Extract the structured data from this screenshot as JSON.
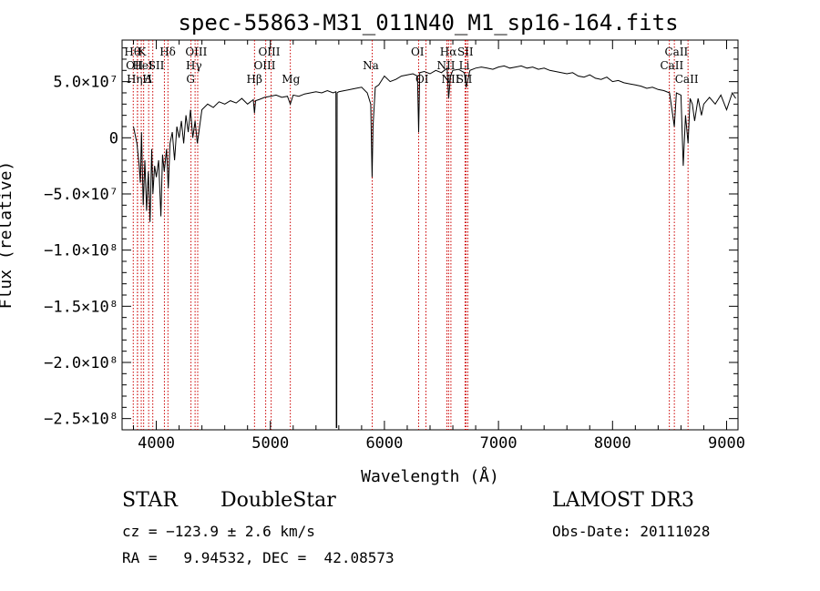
{
  "chart_data": {
    "type": "line",
    "title": "spec-55863-M31_011N40_M1_sp16-164.fits",
    "xlabel": "Wavelength (Å)",
    "ylabel": "Flux (relative)",
    "xlim": [
      3700,
      9100
    ],
    "ylim": [
      -260000000,
      87000000
    ],
    "x_ticks": [
      {
        "value": 4000,
        "label": "4000"
      },
      {
        "value": 5000,
        "label": "5000"
      },
      {
        "value": 6000,
        "label": "6000"
      },
      {
        "value": 7000,
        "label": "7000"
      },
      {
        "value": 8000,
        "label": "8000"
      },
      {
        "value": 9000,
        "label": "9000"
      }
    ],
    "y_ticks": [
      {
        "value": 50000000,
        "label": "5.0×10⁷"
      },
      {
        "value": 0,
        "label": "0"
      },
      {
        "value": -50000000,
        "label": "−5.0×10⁷"
      },
      {
        "value": -100000000,
        "label": "−1.0×10⁸"
      },
      {
        "value": -150000000,
        "label": "−1.5×10⁸"
      },
      {
        "value": -200000000,
        "label": "−2.0×10⁸"
      },
      {
        "value": -250000000,
        "label": "−2.5×10⁸"
      }
    ],
    "series": [
      {
        "name": "spectrum",
        "x": [
          3800,
          3830,
          3850,
          3860,
          3870,
          3885,
          3900,
          3915,
          3930,
          3945,
          3960,
          3970,
          3985,
          4000,
          4020,
          4040,
          4055,
          4070,
          4090,
          4105,
          4120,
          4140,
          4160,
          4180,
          4200,
          4220,
          4240,
          4260,
          4280,
          4300,
          4320,
          4340,
          4360,
          4400,
          4450,
          4500,
          4550,
          4600,
          4650,
          4700,
          4750,
          4800,
          4850,
          4861,
          4870,
          4900,
          4950,
          5000,
          5050,
          5100,
          5150,
          5175,
          5200,
          5250,
          5300,
          5350,
          5400,
          5450,
          5500,
          5550,
          5575,
          5578,
          5580,
          5582,
          5585,
          5600,
          5650,
          5700,
          5750,
          5800,
          5850,
          5880,
          5892,
          5900,
          5920,
          5950,
          6000,
          6050,
          6100,
          6150,
          6200,
          6250,
          6290,
          6300,
          6310,
          6350,
          6400,
          6450,
          6500,
          6550,
          6563,
          6580,
          6600,
          6650,
          6700,
          6717,
          6750,
          6800,
          6850,
          6900,
          6950,
          7000,
          7050,
          7100,
          7150,
          7200,
          7250,
          7300,
          7350,
          7400,
          7450,
          7500,
          7550,
          7600,
          7650,
          7700,
          7750,
          7800,
          7850,
          7900,
          7950,
          8000,
          8050,
          8100,
          8150,
          8200,
          8250,
          8300,
          8350,
          8400,
          8450,
          8500,
          8542,
          8560,
          8600,
          8620,
          8640,
          8662,
          8680,
          8700,
          8720,
          8750,
          8780,
          8800,
          8850,
          8900,
          8950,
          9000,
          9050,
          9080
        ],
        "y": [
          10000000,
          -5000000,
          -25000000,
          -40000000,
          5000000,
          -60000000,
          -20000000,
          -65000000,
          -30000000,
          -75000000,
          -10000000,
          -50000000,
          -25000000,
          -35000000,
          -20000000,
          -70000000,
          -15000000,
          -30000000,
          -10000000,
          -45000000,
          -5000000,
          5000000,
          -20000000,
          10000000,
          0,
          15000000,
          -5000000,
          20000000,
          5000000,
          25000000,
          0,
          15000000,
          -5000000,
          25000000,
          30000000,
          27000000,
          32000000,
          30000000,
          33000000,
          31000000,
          35000000,
          30000000,
          34000000,
          22000000,
          33000000,
          34000000,
          36000000,
          37000000,
          38000000,
          36000000,
          37000000,
          30000000,
          38000000,
          37000000,
          39000000,
          40000000,
          41000000,
          40000000,
          42000000,
          40000000,
          41000000,
          -258000000,
          -258000000,
          -258000000,
          40000000,
          41000000,
          42000000,
          43000000,
          44000000,
          45000000,
          40000000,
          30000000,
          -35000000,
          10000000,
          45000000,
          47000000,
          55000000,
          50000000,
          52000000,
          55000000,
          56000000,
          57000000,
          55000000,
          5000000,
          58000000,
          59000000,
          57000000,
          60000000,
          58000000,
          62000000,
          35000000,
          55000000,
          60000000,
          61000000,
          58000000,
          45000000,
          60000000,
          62000000,
          63000000,
          62000000,
          61000000,
          63000000,
          64000000,
          62000000,
          63000000,
          64000000,
          62000000,
          63000000,
          61000000,
          62000000,
          60000000,
          59000000,
          58000000,
          57000000,
          58000000,
          55000000,
          54000000,
          56000000,
          53000000,
          52000000,
          54000000,
          50000000,
          51000000,
          49000000,
          48000000,
          47000000,
          46000000,
          44000000,
          45000000,
          43000000,
          42000000,
          40000000,
          10000000,
          40000000,
          38000000,
          -25000000,
          20000000,
          -5000000,
          35000000,
          30000000,
          15000000,
          35000000,
          20000000,
          30000000,
          36000000,
          30000000,
          38000000,
          25000000,
          40000000,
          35000000
        ]
      }
    ],
    "lines": [
      {
        "wl": 3798,
        "label": "Hθ",
        "row": 0,
        "labelWl": 3790
      },
      {
        "wl": 3835,
        "label": "OII",
        "row": 1,
        "labelWl": 3810
      },
      {
        "wl": 3835,
        "label": "Hη",
        "row": 2,
        "labelWl": 3810
      },
      {
        "wl": 3868,
        "label": "K",
        "row": 0,
        "labelWl": 3875
      },
      {
        "wl": 3889,
        "label": "HeI",
        "row": 1,
        "labelWl": 3880
      },
      {
        "wl": 3933,
        "label": "H",
        "row": 2,
        "labelWl": 3920
      },
      {
        "wl": 3969,
        "label": "Δ",
        "row": 2,
        "labelWl": 3930
      },
      {
        "wl": 4071,
        "label": "SII",
        "row": 1,
        "labelWl": 4000
      },
      {
        "wl": 4102,
        "label": "Hδ",
        "row": 0,
        "labelWl": 4100
      },
      {
        "wl": 4304,
        "label": "G",
        "row": 2,
        "labelWl": 4300
      },
      {
        "wl": 4340,
        "label": "Hγ",
        "row": 1,
        "labelWl": 4330
      },
      {
        "wl": 4363,
        "label": "OIII",
        "row": 0,
        "labelWl": 4350
      },
      {
        "wl": 4861,
        "label": "Hβ",
        "row": 2,
        "labelWl": 4860
      },
      {
        "wl": 4959,
        "label": "OIII",
        "row": 1,
        "labelWl": 4950
      },
      {
        "wl": 5007,
        "label": "OIII",
        "row": 0,
        "labelWl": 4990
      },
      {
        "wl": 5175,
        "label": "Mg",
        "row": 2,
        "labelWl": 5180
      },
      {
        "wl": 5893,
        "label": "Na",
        "row": 1,
        "labelWl": 5880
      },
      {
        "wl": 6300,
        "label": "OI",
        "row": 0,
        "labelWl": 6290
      },
      {
        "wl": 6364,
        "label": "OI",
        "row": 2,
        "labelWl": 6330
      },
      {
        "wl": 6548,
        "label": "NII",
        "row": 1,
        "labelWl": 6540
      },
      {
        "wl": 6563,
        "label": "Hα",
        "row": 0,
        "labelWl": 6560
      },
      {
        "wl": 6583,
        "label": "NII",
        "row": 2,
        "labelWl": 6580
      },
      {
        "wl": 6707,
        "label": "Li",
        "row": 1,
        "labelWl": 6700
      },
      {
        "wl": 6716,
        "label": "SII",
        "row": 0,
        "labelWl": 6710
      },
      {
        "wl": 6731,
        "label": "SII",
        "row": 2,
        "labelWl": 6700
      },
      {
        "wl": 8498,
        "label": "CaII",
        "row": 1,
        "labelWl": 8520
      },
      {
        "wl": 8542,
        "label": "CaII",
        "row": 0,
        "labelWl": 8560
      },
      {
        "wl": 8662,
        "label": "CaII",
        "row": 2,
        "labelWl": 8650
      }
    ]
  },
  "info": {
    "class": "STAR",
    "subclass": "DoubleStar",
    "survey": "LAMOST DR3",
    "cz": "cz = −123.9 ± 2.6 km/s",
    "obs_date": "Obs-Date: 20111028",
    "radec": "RA =   9.94532, DEC =  42.08573"
  }
}
